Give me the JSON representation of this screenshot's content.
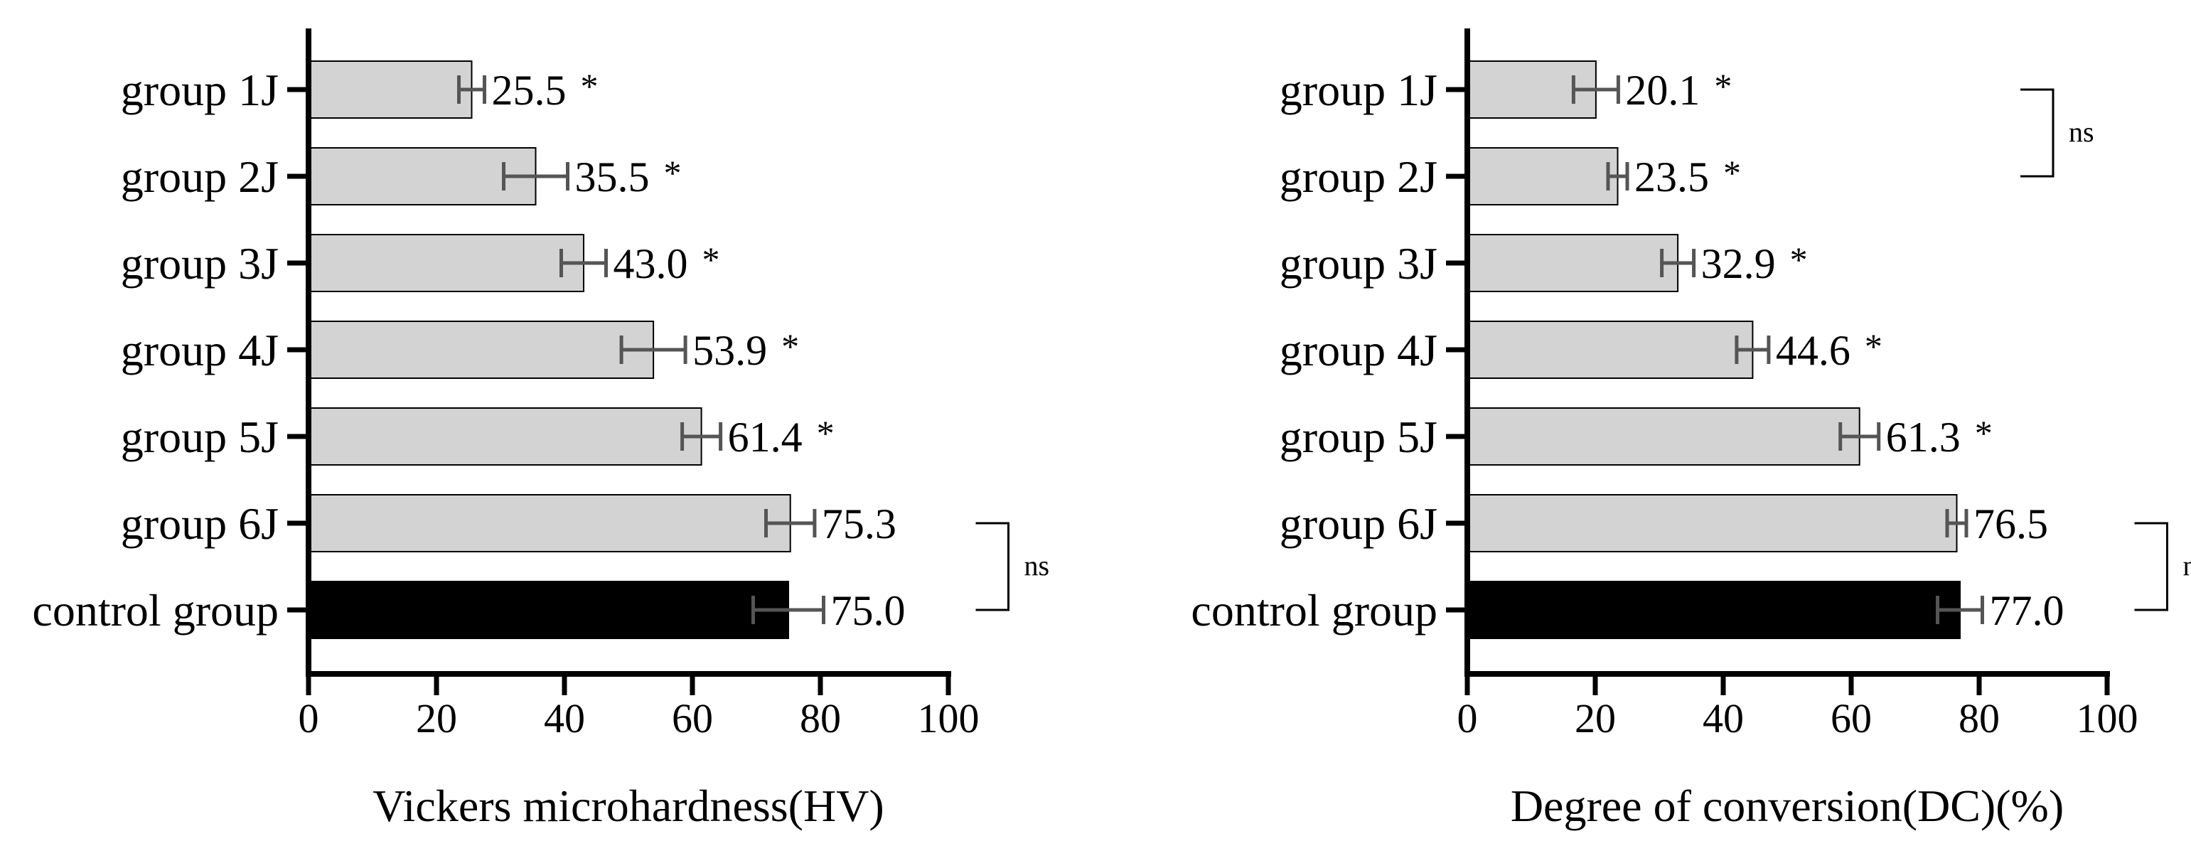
{
  "chart_data": [
    {
      "type": "bar",
      "orientation": "horizontal",
      "categories": [
        "group 1J",
        "group 2J",
        "group 3J",
        "group 4J",
        "group 5J",
        "group 6J",
        "control group"
      ],
      "values": [
        25.5,
        35.5,
        43.0,
        53.9,
        61.4,
        75.3,
        75.0
      ],
      "value_labels": [
        "25.5",
        "35.5",
        "43.0",
        "53.9",
        "61.4",
        "75.3",
        "75.0"
      ],
      "errors": [
        2.0,
        5.0,
        3.5,
        5.0,
        3.0,
        3.8,
        5.5
      ],
      "significance": [
        "*",
        "*",
        "*",
        "*",
        "*",
        "",
        ""
      ],
      "bar_colors": [
        "#d3d3d3",
        "#d3d3d3",
        "#d3d3d3",
        "#d3d3d3",
        "#d3d3d3",
        "#d3d3d3",
        "#000000"
      ],
      "brackets": [
        {
          "from": "group 6J",
          "to": "control group",
          "label": "ns"
        }
      ],
      "xlabel": "Vickers microhardness(HV)",
      "xlim": [
        0,
        100
      ],
      "xticks": [
        0,
        20,
        40,
        60,
        80,
        100
      ],
      "grid": false
    },
    {
      "type": "bar",
      "orientation": "horizontal",
      "categories": [
        "group 1J",
        "group 2J",
        "group 3J",
        "group 4J",
        "group 5J",
        "group 6J",
        "control group"
      ],
      "values": [
        20.1,
        23.5,
        32.9,
        44.6,
        61.3,
        76.5,
        77.0
      ],
      "value_labels": [
        "20.1",
        "23.5",
        "32.9",
        "44.6",
        "61.3",
        "76.5",
        "77.0"
      ],
      "errors": [
        3.5,
        1.5,
        2.5,
        2.5,
        3.0,
        1.5,
        3.5
      ],
      "significance": [
        "*",
        "*",
        "*",
        "*",
        "*",
        "",
        ""
      ],
      "bar_colors": [
        "#d3d3d3",
        "#d3d3d3",
        "#d3d3d3",
        "#d3d3d3",
        "#d3d3d3",
        "#d3d3d3",
        "#000000"
      ],
      "brackets": [
        {
          "from": "group 1J",
          "to": "group 2J",
          "label": "ns"
        },
        {
          "from": "group 6J",
          "to": "control group",
          "label": "ns"
        }
      ],
      "xlabel": "Degree of conversion(DC)(%)",
      "xlim": [
        0,
        100
      ],
      "xticks": [
        0,
        20,
        40,
        60,
        80,
        100
      ],
      "grid": false
    }
  ]
}
